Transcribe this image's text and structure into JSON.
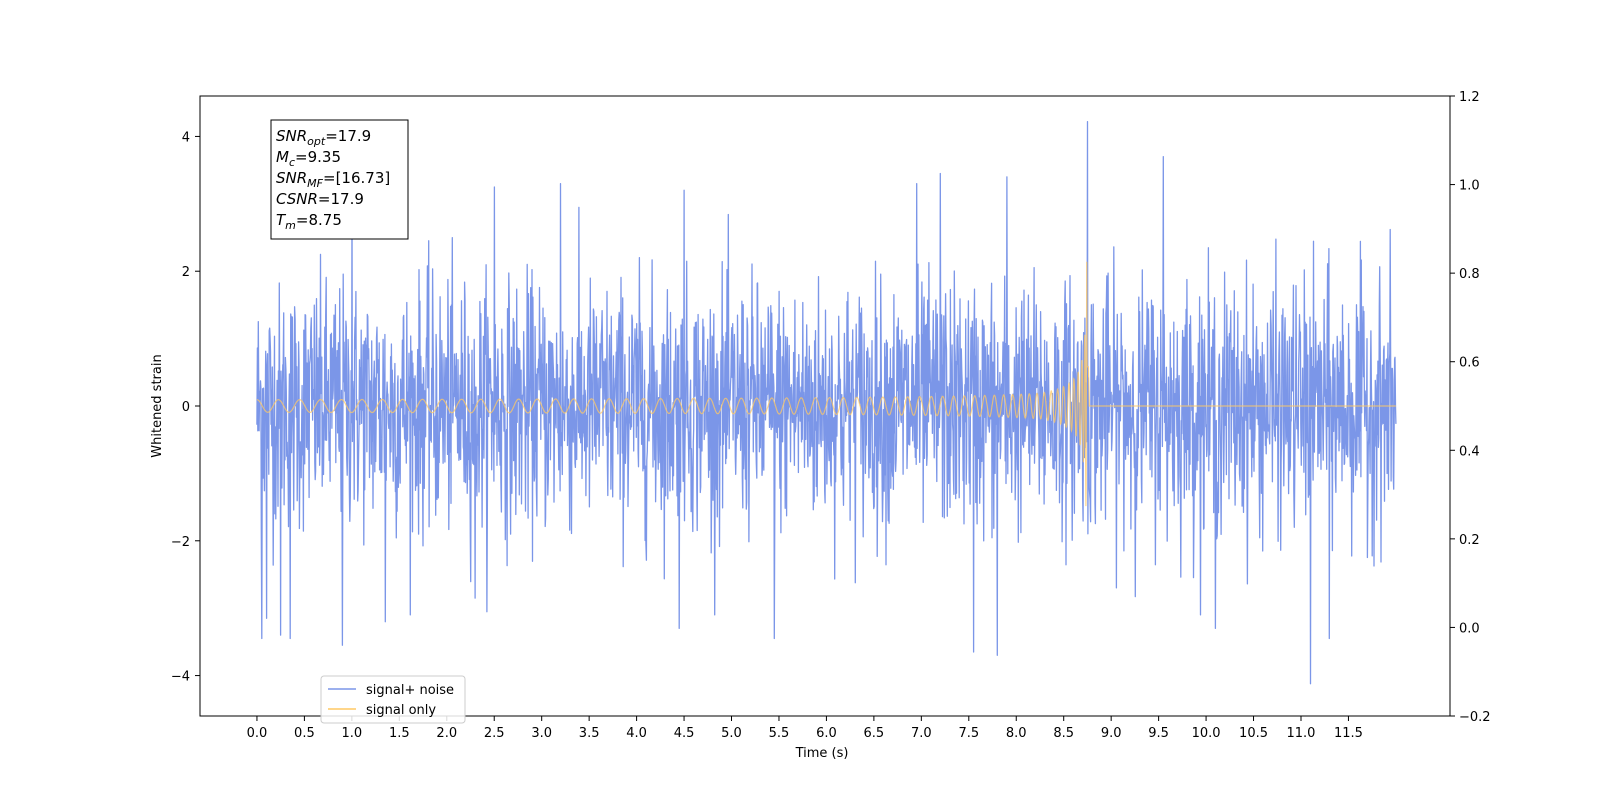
{
  "chart_data": {
    "type": "line",
    "title": "",
    "xlabel": "Time (s)",
    "ylabel": "Whitened strain",
    "xlim": [
      -0.6,
      12.57
    ],
    "ylim": [
      -4.6,
      4.6
    ],
    "y2lim": [
      -0.2,
      1.2
    ],
    "x_ticks": [
      0.0,
      0.5,
      1.0,
      1.5,
      2.0,
      2.5,
      3.0,
      3.5,
      4.0,
      4.5,
      5.0,
      5.5,
      6.0,
      6.5,
      7.0,
      7.5,
      8.0,
      8.5,
      9.0,
      9.5,
      10.0,
      10.5,
      11.0,
      11.5
    ],
    "x_tick_labels": [
      "0.0",
      "0.5",
      "1.0",
      "1.5",
      "2.0",
      "2.5",
      "3.0",
      "3.5",
      "4.0",
      "4.5",
      "5.0",
      "5.5",
      "6.0",
      "6.5",
      "7.0",
      "7.5",
      "8.0",
      "8.5",
      "9.0",
      "9.5",
      "10.0",
      "10.5",
      "11.0",
      "11.5"
    ],
    "y_ticks": [
      -4,
      -2,
      0,
      2,
      4
    ],
    "y_tick_labels": [
      "−4",
      "−2",
      "0",
      "2",
      "4"
    ],
    "y2_ticks": [
      -0.2,
      0.0,
      0.2,
      0.4,
      0.6,
      0.8,
      1.0,
      1.2
    ],
    "y2_tick_labels": [
      "−0.2",
      "0.0",
      "0.2",
      "0.4",
      "0.6",
      "0.8",
      "1.0",
      "1.2"
    ],
    "grid": false,
    "legend_position": "bottom-left",
    "series": [
      {
        "name": "signal+ noise",
        "color": "#7b96e8",
        "description_values": {
          "x_start": 0.0,
          "x_end": 12.0,
          "approx_std": 0.9,
          "max": 4.22,
          "max_at": 8.75,
          "min": -4.12,
          "min_at": 11.1
        },
        "peaks": [
          {
            "x": 0.05,
            "y": -3.45
          },
          {
            "x": 0.1,
            "y": -3.15
          },
          {
            "x": 0.25,
            "y": -3.4
          },
          {
            "x": 0.35,
            "y": -3.45
          },
          {
            "x": 0.9,
            "y": -3.55
          },
          {
            "x": 1.0,
            "y": 3.0
          },
          {
            "x": 1.35,
            "y": -3.2
          },
          {
            "x": 2.5,
            "y": 3.25
          },
          {
            "x": 2.3,
            "y": -2.85
          },
          {
            "x": 3.2,
            "y": 3.3
          },
          {
            "x": 4.5,
            "y": 3.2
          },
          {
            "x": 4.45,
            "y": -3.3
          },
          {
            "x": 5.45,
            "y": -3.45
          },
          {
            "x": 6.95,
            "y": 3.3
          },
          {
            "x": 7.2,
            "y": 3.45
          },
          {
            "x": 7.55,
            "y": -3.65
          },
          {
            "x": 7.8,
            "y": -3.7
          },
          {
            "x": 7.9,
            "y": 3.4
          },
          {
            "x": 8.75,
            "y": 4.22
          },
          {
            "x": 9.55,
            "y": 3.7
          },
          {
            "x": 10.1,
            "y": -3.3
          },
          {
            "x": 11.1,
            "y": -4.12
          },
          {
            "x": 11.3,
            "y": -3.45
          }
        ]
      },
      {
        "name": "signal only",
        "color": "#ffc864",
        "description_values": {
          "waveform": "chirp",
          "x_start": 0.0,
          "merger_time": 8.75,
          "amplitude_start": 0.08,
          "amplitude_at_merger": 2.2,
          "min_at_merger": -2.5,
          "after_merger": 0.0
        }
      }
    ],
    "annotation_lines": [
      {
        "label": "SNR",
        "sub": "opt",
        "value": "=17.9"
      },
      {
        "label": "M",
        "sub": "c",
        "value": "=9.35"
      },
      {
        "label": "SNR",
        "sub": "MF",
        "value": "=[16.73]"
      },
      {
        "label": "CSNR",
        "sub": "",
        "value": "=17.9"
      },
      {
        "label": "T",
        "sub": "m",
        "value": "=8.75"
      }
    ]
  }
}
